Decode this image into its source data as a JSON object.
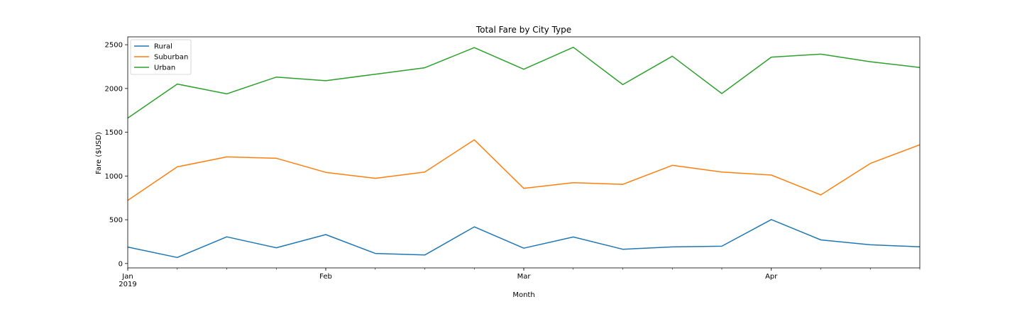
{
  "chart_data": {
    "type": "line",
    "title": "Total Fare by City Type",
    "xlabel": "Month",
    "ylabel": "Fare ($USD)",
    "x": [
      "2019-01-06",
      "2019-01-13",
      "2019-01-20",
      "2019-01-27",
      "2019-02-03",
      "2019-02-10",
      "2019-02-17",
      "2019-02-24",
      "2019-03-03",
      "2019-03-10",
      "2019-03-17",
      "2019-03-24",
      "2019-03-31",
      "2019-04-07",
      "2019-04-14",
      "2019-04-21",
      "2019-04-28"
    ],
    "xlim": [
      "2019-01-06",
      "2019-04-28"
    ],
    "ylim": [
      -50,
      2590
    ],
    "x_major_ticks": [
      {
        "date": "2019-01-06",
        "label": "Jan",
        "sublabel": "2019"
      },
      {
        "date": "2019-02-03",
        "label": "Feb",
        "sublabel": ""
      },
      {
        "date": "2019-03-03",
        "label": "Mar",
        "sublabel": ""
      },
      {
        "date": "2019-04-07",
        "label": "Apr",
        "sublabel": ""
      }
    ],
    "y_ticks": [
      0,
      500,
      1000,
      1500,
      2000,
      2500
    ],
    "y_tick_labels": [
      "0",
      "500",
      "1000",
      "1500",
      "2000",
      "2500"
    ],
    "grid": false,
    "legend_position": "top-left",
    "series": [
      {
        "name": "Rural",
        "color": "#1f77b4",
        "values": [
          188,
          69,
          305,
          180,
          331,
          115,
          97,
          419,
          175,
          303,
          163,
          190,
          198,
          502,
          270,
          214,
          191
        ]
      },
      {
        "name": "Suburban",
        "color": "#ff7f0e",
        "values": [
          722,
          1105,
          1218,
          1203,
          1042,
          974,
          1045,
          1413,
          859,
          924,
          905,
          1122,
          1045,
          1011,
          784,
          1144,
          1357
        ]
      },
      {
        "name": "Urban",
        "color": "#2ca02c",
        "values": [
          1662,
          2051,
          1939,
          2130,
          2089,
          2163,
          2237,
          2467,
          2220,
          2471,
          2044,
          2369,
          1942,
          2358,
          2392,
          2306,
          2240
        ]
      }
    ]
  }
}
